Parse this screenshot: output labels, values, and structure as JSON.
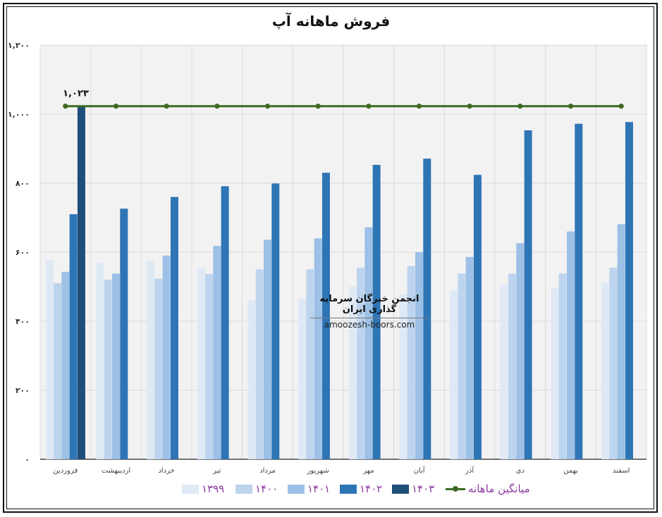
{
  "chart_data": {
    "type": "bar",
    "title": "فروش ماهانه آپ",
    "categories": [
      "فروردین",
      "اردیبهشت",
      "خرداد",
      "تیر",
      "مرداد",
      "شهریور",
      "مهر",
      "آبان",
      "آذر",
      "دی",
      "بهمن",
      "اسفند"
    ],
    "ylim": [
      0,
      1200
    ],
    "yticks": [
      0,
      200,
      400,
      600,
      800,
      1000,
      1200
    ],
    "ytick_labels": [
      "۰",
      "۲۰۰",
      "۴۰۰",
      "۶۰۰",
      "۸۰۰",
      "۱,۰۰۰",
      "۱,۲۰۰"
    ],
    "grid": true,
    "legend_position": "bottom",
    "series": [
      {
        "name": "۱۳۹۹",
        "color": "#dfe9f6",
        "values": [
          577,
          569,
          574,
          553,
          460,
          465,
          500,
          478,
          490,
          505,
          495,
          512
        ]
      },
      {
        "name": "۱۴۰۰",
        "color": "#bdd4ee",
        "values": [
          510,
          520,
          523,
          537,
          550,
          550,
          555,
          560,
          538,
          538,
          538,
          555
        ]
      },
      {
        "name": "۱۴۰۱",
        "color": "#9cc0e6",
        "values": [
          543,
          538,
          590,
          618,
          636,
          640,
          672,
          600,
          586,
          626,
          660,
          681
        ]
      },
      {
        "name": "۱۴۰۲",
        "color": "#2e75b6",
        "values": [
          710,
          726,
          760,
          791,
          799,
          830,
          853,
          871,
          824,
          953,
          972,
          977
        ]
      },
      {
        "name": "۱۴۰۳",
        "color": "#1f4e79",
        "values": [
          1023,
          null,
          null,
          null,
          null,
          null,
          null,
          null,
          null,
          null,
          null,
          null
        ]
      }
    ],
    "average_line": {
      "name": "میانگین ماهانه",
      "color": "#3c6a22",
      "value": 1023
    },
    "data_labels": [
      {
        "series": "۱۴۰۳",
        "category": "فروردین",
        "text": "۱,۰۲۳"
      }
    ]
  },
  "watermark": {
    "line1": "انجمن خبرگان سرمایه گذاری ایران",
    "line2": "amoozesh-boors.com"
  }
}
